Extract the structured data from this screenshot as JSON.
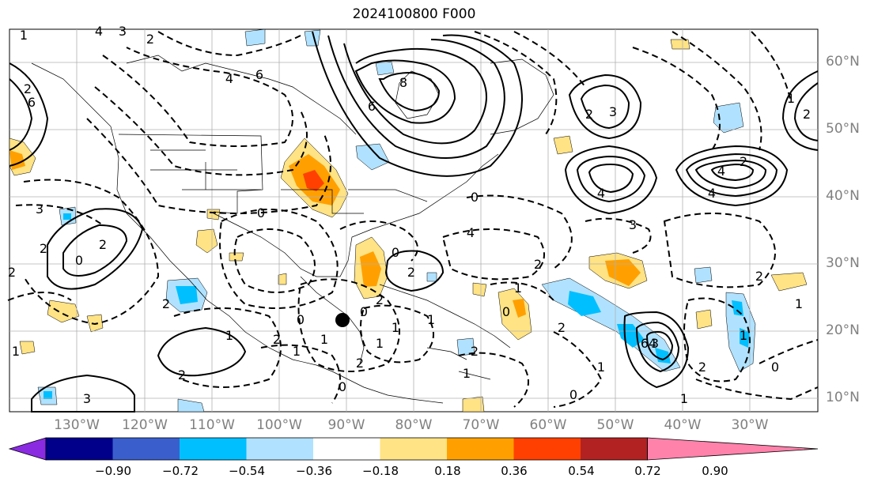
{
  "title": "2024100800 F000",
  "lat_labels": [
    "60°N",
    "50°N",
    "40°N",
    "30°N",
    "20°N",
    "10°N"
  ],
  "lon_labels": [
    "130°W",
    "120°W",
    "110°W",
    "100°W",
    "90°W",
    "80°W",
    "70°W",
    "60°W",
    "50°W",
    "40°W",
    "30°W"
  ],
  "colorbar": {
    "colors": [
      "#8a2be2",
      "#00008b",
      "#3a5fcd",
      "#00bfff",
      "#b0e2ff",
      "#ffffff",
      "#ffe384",
      "#ffa000",
      "#ff4000",
      "#b22222",
      "#ff82ab"
    ],
    "labels": [
      "−0.90",
      "−0.72",
      "−0.54",
      "−0.36",
      "−0.18",
      "0.18",
      "0.36",
      "0.54",
      "0.72",
      "0.90"
    ]
  },
  "contour_labels": [
    "1",
    "4",
    "3",
    "2",
    "6",
    "2",
    "4",
    "6",
    "8",
    "6",
    "4",
    "2",
    "1",
    "2",
    "3",
    "2",
    "4",
    "4",
    "6",
    "4",
    "3",
    "3",
    "0",
    "2",
    "2",
    "1",
    "2",
    "1",
    "0",
    "1",
    "0",
    "2",
    "2",
    "0",
    "4",
    "1",
    "0",
    "2",
    "2",
    "1",
    "0",
    "3",
    "2",
    "2",
    "1",
    "0",
    "1",
    "1",
    "2",
    "0",
    "1",
    "0",
    "1",
    "2",
    "2",
    "2",
    "1",
    "1",
    "0",
    "2",
    "1",
    "3"
  ],
  "marker": "black-dot"
}
